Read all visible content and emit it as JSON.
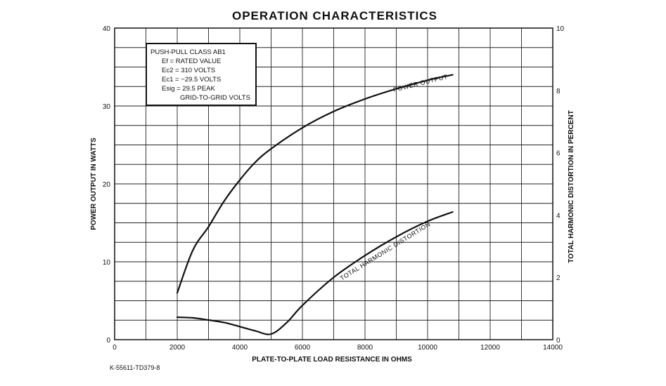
{
  "chart_data": {
    "type": "line",
    "title": "OPERATION CHARACTERISTICS",
    "xlabel": "PLATE-TO-PLATE LOAD RESISTANCE IN OHMS",
    "ylabel": "POWER OUTPUT IN WATTS",
    "y2label": "TOTAL HARMONIC DISTORTION IN PERCENT",
    "xlim": [
      0,
      14000
    ],
    "ylim": [
      0,
      40
    ],
    "y2lim": [
      0,
      10
    ],
    "grid": true,
    "x_ticks": [
      "0",
      "2000",
      "4000",
      "6000",
      "8000",
      "10000",
      "12000",
      "14000"
    ],
    "y_ticks": [
      "0",
      "10",
      "20",
      "30",
      "40"
    ],
    "y2_ticks": [
      "0",
      "2",
      "4",
      "6",
      "8",
      "10"
    ],
    "series": [
      {
        "name": "POWER OUTPUT",
        "axis": "left",
        "x": [
          2000,
          2500,
          3000,
          3500,
          4000,
          4500,
          5000,
          6000,
          7000,
          8000,
          9000,
          10000,
          10800
        ],
        "y": [
          6,
          11.5,
          14.5,
          17.8,
          20.5,
          22.8,
          24.5,
          27.2,
          29.3,
          30.9,
          32.2,
          33.3,
          34
        ]
      },
      {
        "name": "TOTAL HARMONIC DISTORTION",
        "axis": "right",
        "x": [
          2000,
          2500,
          3000,
          3500,
          4000,
          4500,
          5000,
          5500,
          6000,
          7000,
          8000,
          9000,
          10000,
          10800
        ],
        "y": [
          0.72,
          0.7,
          0.63,
          0.55,
          0.42,
          0.28,
          0.18,
          0.55,
          1.1,
          2.0,
          2.7,
          3.3,
          3.8,
          4.1
        ]
      }
    ],
    "annotation": {
      "lines": [
        "PUSH-PULL CLASS AB1",
        "Ef = RATED VALUE",
        "Ec2 = 310 VOLTS",
        "Ec1 = −29.5 VOLTS",
        "Esig = 29.5 PEAK",
        "GRID-TO-GRID VOLTS"
      ]
    },
    "footer_code": "K-55611-TD379-8"
  }
}
